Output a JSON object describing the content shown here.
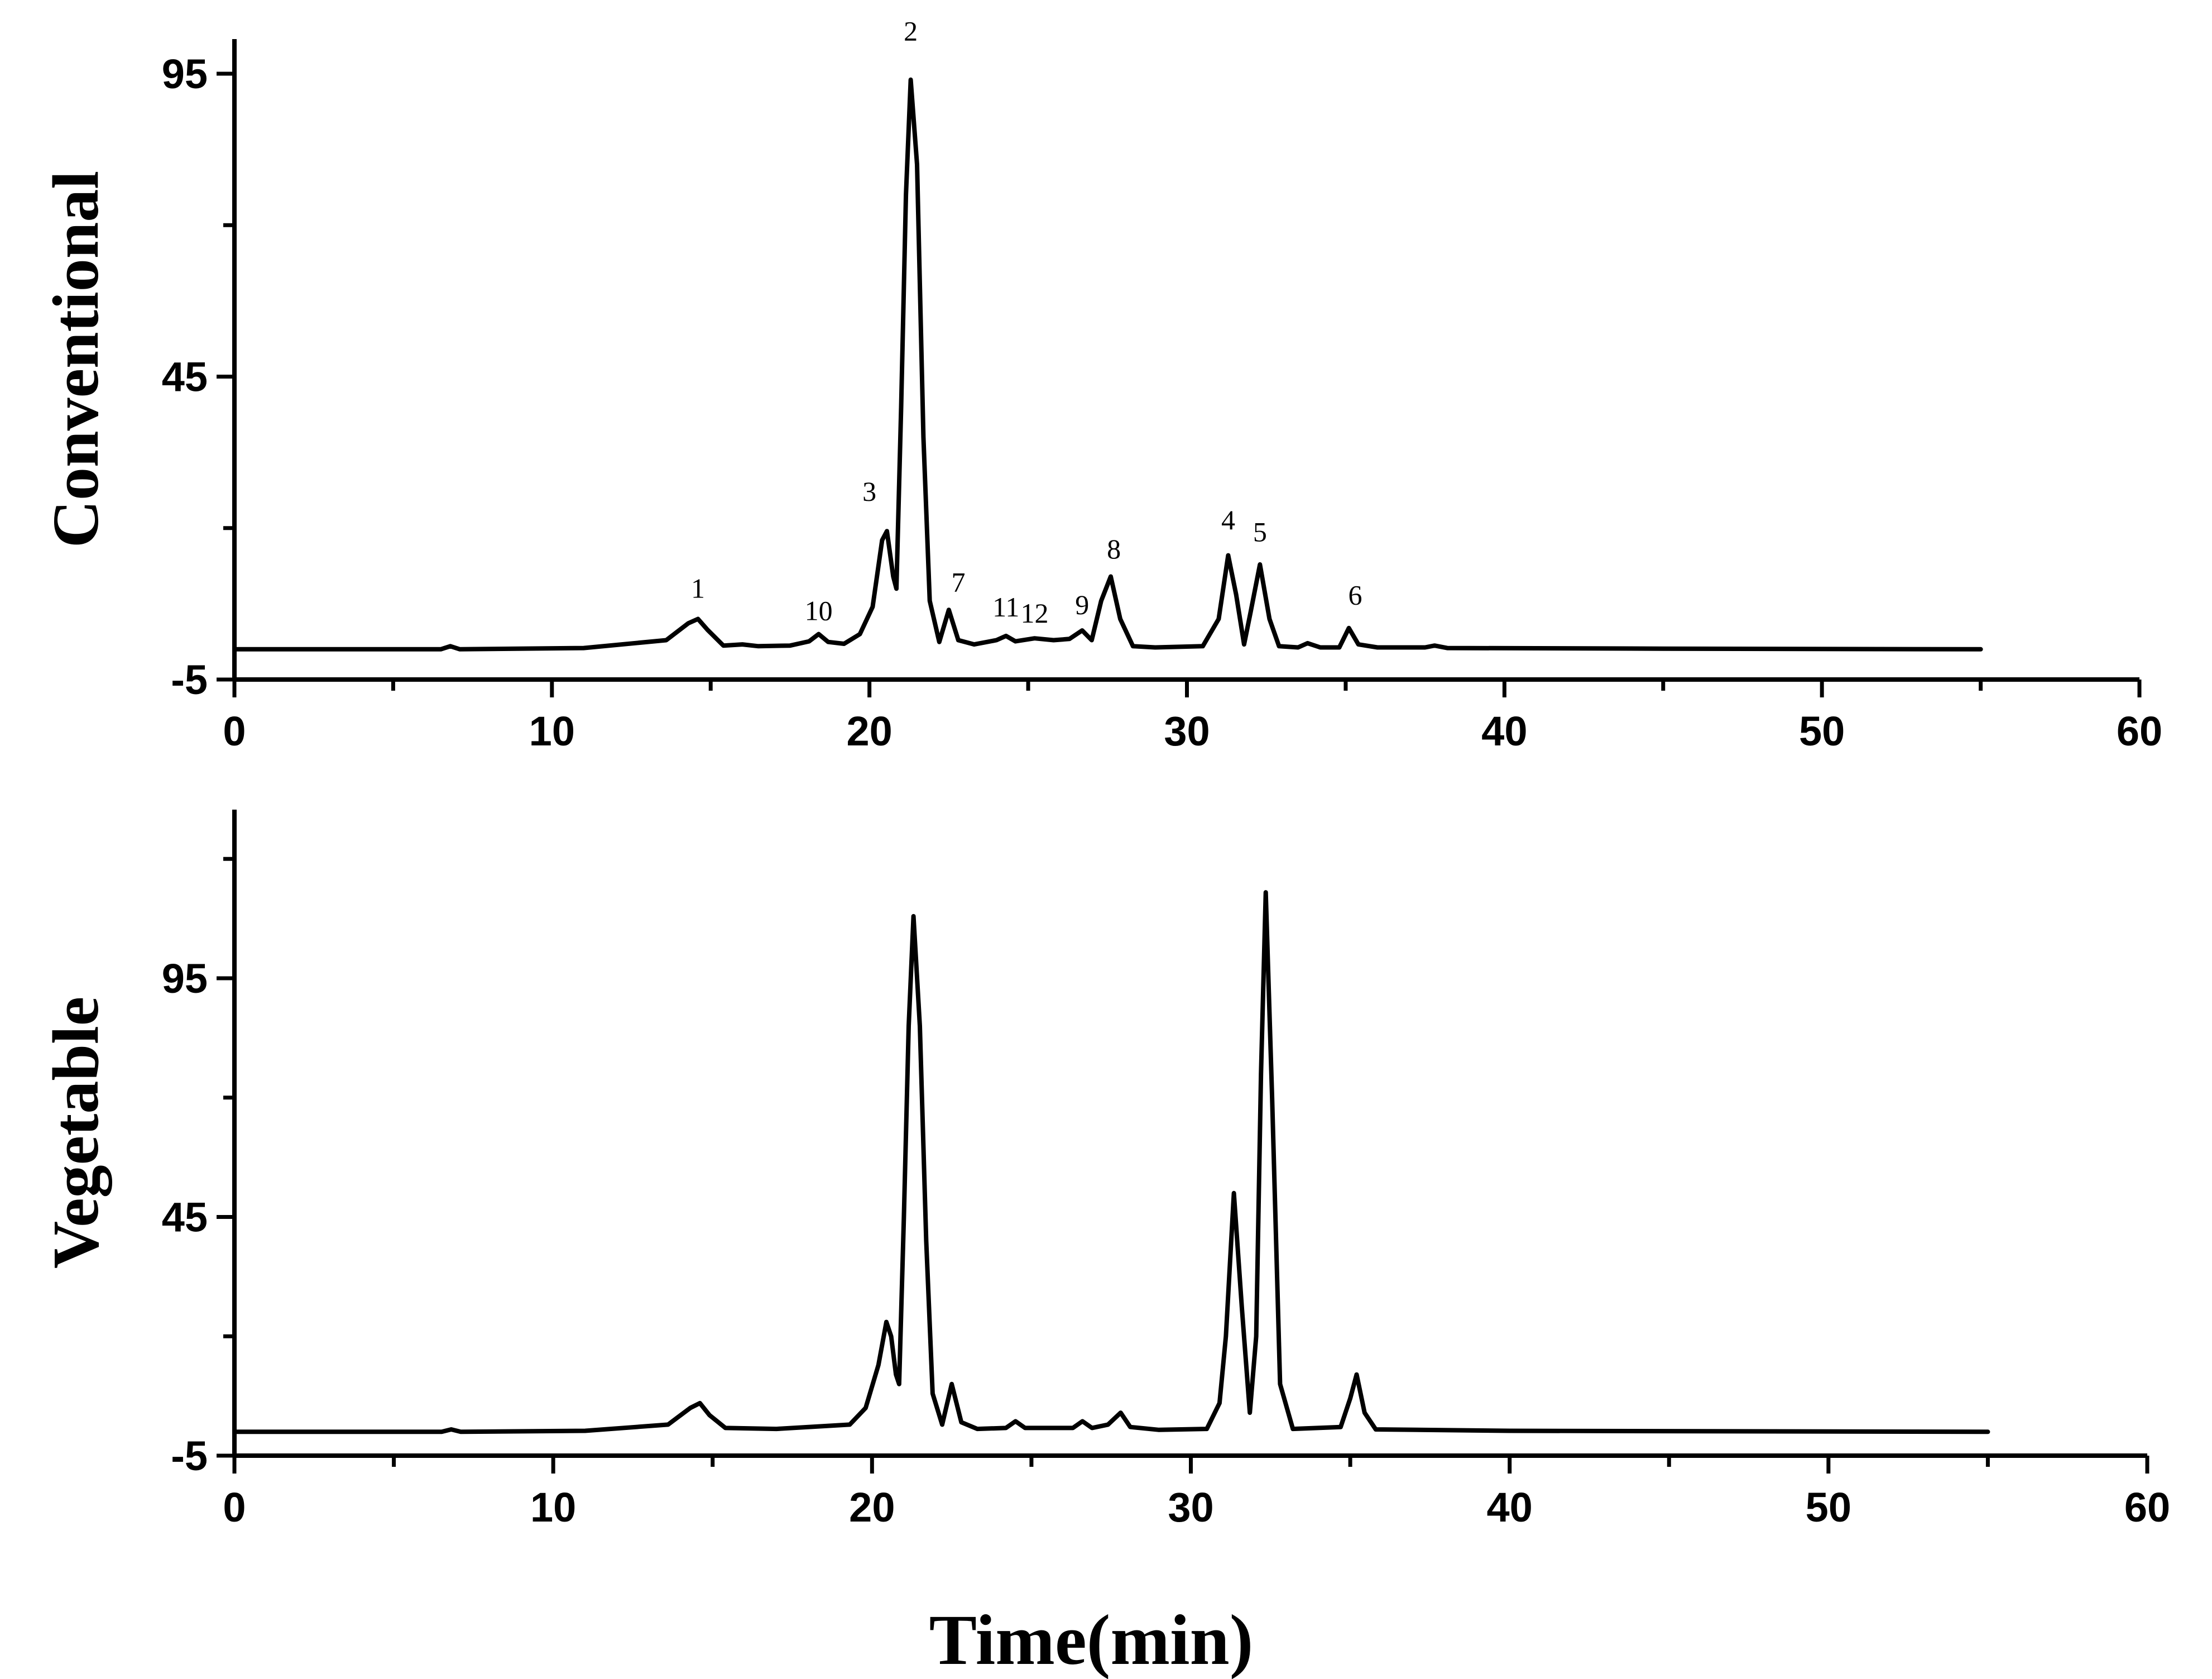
{
  "chart_data": [
    {
      "type": "line",
      "ylabel": "Conventional",
      "xlim": [
        0,
        60
      ],
      "ylim": [
        -5,
        105
      ],
      "xticks": [
        0,
        10,
        20,
        30,
        40,
        50,
        60
      ],
      "yticks": [
        -5,
        45,
        95
      ],
      "series": [
        {
          "x": [
            0,
            6.5,
            6.8,
            7.1,
            11,
            13.6,
            14.3,
            14.6,
            14.9,
            15.4,
            16,
            16.5,
            17.5,
            18.1,
            18.4,
            18.7,
            19.2,
            19.7,
            20.1,
            20.4,
            20.55,
            20.75,
            20.85,
            21.0,
            21.15,
            21.3,
            21.5,
            21.7,
            21.9,
            22.2,
            22.5,
            22.8,
            23.3,
            24.0,
            24.3,
            24.6,
            25.2,
            25.8,
            26.3,
            26.7,
            27.0,
            27.3,
            27.6,
            27.9,
            28.3,
            29,
            30.5,
            31.0,
            31.3,
            31.55,
            31.8,
            32.0,
            32.3,
            32.6,
            32.9,
            33.5,
            33.8,
            34.2,
            34.8,
            35.1,
            35.4,
            36,
            37.5,
            37.8,
            38.2,
            45,
            55
          ],
          "y": [
            0,
            0,
            0.5,
            0,
            0.2,
            1.5,
            4.3,
            5,
            3.2,
            0.6,
            0.8,
            0.5,
            0.6,
            1.3,
            2.5,
            1.2,
            0.9,
            2.5,
            7,
            18,
            19.5,
            12,
            10,
            40,
            75,
            94,
            80,
            35,
            8,
            1.2,
            6.5,
            1.5,
            0.8,
            1.5,
            2.2,
            1.3,
            1.8,
            1.5,
            1.7,
            3.1,
            1.5,
            8,
            12,
            5,
            0.5,
            0.3,
            0.5,
            5,
            15.5,
            9,
            0.8,
            6,
            14,
            5,
            0.5,
            0.3,
            1,
            0.3,
            0.3,
            3.5,
            0.8,
            0.3,
            0.3,
            0.6,
            0.2,
            0.1,
            0
          ]
        }
      ],
      "annotations": [
        {
          "text": "1",
          "x": 14.6,
          "y": 8.5
        },
        {
          "text": "10",
          "x": 18.4,
          "y": 4.8
        },
        {
          "text": "3",
          "x": 20.0,
          "y": 24.5
        },
        {
          "text": "2",
          "x": 21.3,
          "y": 100.5
        },
        {
          "text": "7",
          "x": 22.8,
          "y": 9.5
        },
        {
          "text": "11",
          "x": 24.3,
          "y": 5.4
        },
        {
          "text": "12",
          "x": 25.2,
          "y": 4.4
        },
        {
          "text": "9",
          "x": 26.7,
          "y": 5.8
        },
        {
          "text": "8",
          "x": 27.7,
          "y": 15.0
        },
        {
          "text": "4",
          "x": 31.3,
          "y": 19.8
        },
        {
          "text": "5",
          "x": 32.3,
          "y": 17.8
        },
        {
          "text": "6",
          "x": 35.3,
          "y": 7.4
        }
      ]
    },
    {
      "type": "line",
      "ylabel": "Vegetable",
      "xlim": [
        0,
        60
      ],
      "ylim": [
        -5,
        125
      ],
      "xticks": [
        0,
        10,
        20,
        30,
        40,
        50,
        60
      ],
      "yticks": [
        -5,
        45,
        95
      ],
      "series": [
        {
          "x": [
            0,
            6.5,
            6.8,
            7.1,
            11,
            13.6,
            14.3,
            14.6,
            14.9,
            15.4,
            17,
            19.3,
            19.8,
            20.2,
            20.45,
            20.6,
            20.75,
            20.85,
            21.0,
            21.15,
            21.3,
            21.5,
            21.7,
            21.9,
            22.2,
            22.5,
            22.8,
            23.3,
            24.2,
            24.5,
            24.8,
            26.3,
            26.6,
            26.9,
            27.4,
            27.8,
            28.1,
            29,
            30.5,
            30.9,
            31.1,
            31.35,
            31.6,
            31.85,
            32.05,
            32.2,
            32.35,
            32.55,
            32.8,
            33.2,
            34.7,
            35.0,
            35.2,
            35.45,
            35.8,
            40,
            55
          ],
          "y": [
            0,
            0,
            0.5,
            0,
            0.2,
            1.5,
            5,
            6,
            3.5,
            0.8,
            0.6,
            1.5,
            5,
            14,
            23,
            20,
            12,
            10,
            45,
            85,
            108,
            85,
            40,
            8,
            1.5,
            10,
            2,
            0.6,
            0.8,
            2.2,
            0.8,
            0.8,
            2.2,
            0.8,
            1.5,
            4,
            1,
            0.4,
            0.6,
            6,
            20,
            50,
            26,
            4,
            20,
            75,
            113,
            70,
            10,
            0.6,
            1,
            7,
            12,
            4,
            0.5,
            0.2,
            0
          ]
        }
      ],
      "annotations": []
    }
  ],
  "xlabel": "Time(min)"
}
